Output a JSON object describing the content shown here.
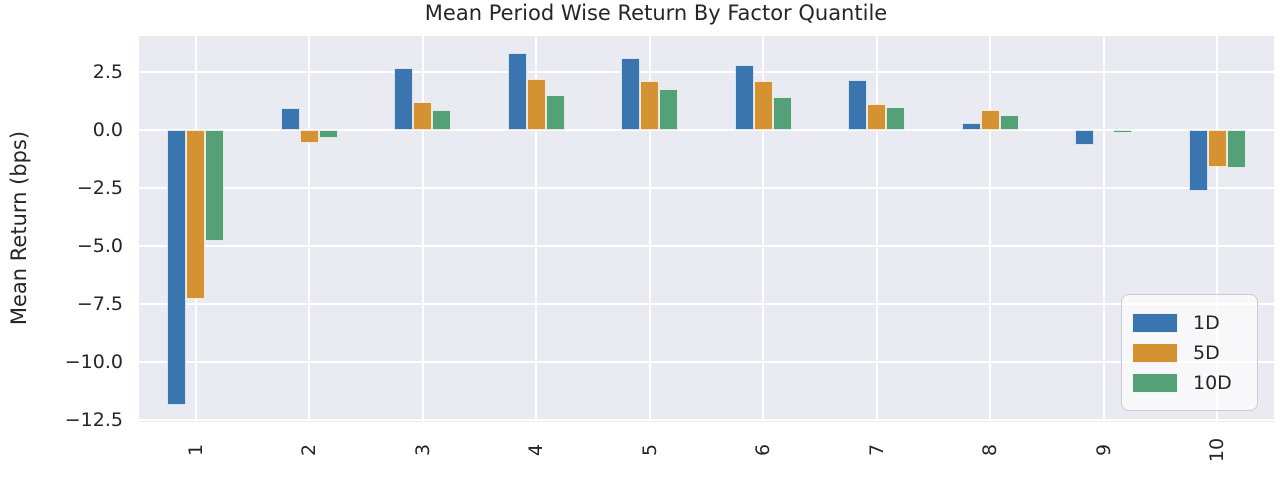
{
  "chart_data": {
    "type": "bar",
    "title": "Mean Period Wise Return By Factor Quantile",
    "ylabel": "Mean Return (bps)",
    "xlabel": "",
    "categories": [
      "1",
      "2",
      "3",
      "4",
      "5",
      "6",
      "7",
      "8",
      "9",
      "10"
    ],
    "series": [
      {
        "name": "1D",
        "color": "#3b75af",
        "values": [
          -11.85,
          0.95,
          2.65,
          3.3,
          3.1,
          2.8,
          2.15,
          0.3,
          -0.65,
          -2.65
        ]
      },
      {
        "name": "5D",
        "color": "#d59233",
        "values": [
          -7.3,
          -0.55,
          1.2,
          2.2,
          2.1,
          2.1,
          1.1,
          0.85,
          0.0,
          -1.6
        ]
      },
      {
        "name": "10D",
        "color": "#54a077",
        "values": [
          -4.8,
          -0.35,
          0.85,
          1.5,
          1.75,
          1.4,
          1.0,
          0.65,
          -0.15,
          -1.65
        ]
      }
    ],
    "ylim": [
      -12.6,
      4.05
    ],
    "yticks": [
      2.5,
      0.0,
      -2.5,
      -5.0,
      -7.5,
      -10.0,
      -12.5
    ],
    "ytick_labels": [
      "2.5",
      "0.0",
      "−2.5",
      "−5.0",
      "−7.5",
      "−10.0",
      "−12.5"
    ],
    "grid": true,
    "bar_group_width_fraction": 0.5,
    "legend": {
      "position": "lower right"
    },
    "colors": {
      "plot_bg": "#eaeaf2",
      "grid": "#ffffff",
      "text": "#262626",
      "figure_bg": "#ffffff"
    }
  }
}
